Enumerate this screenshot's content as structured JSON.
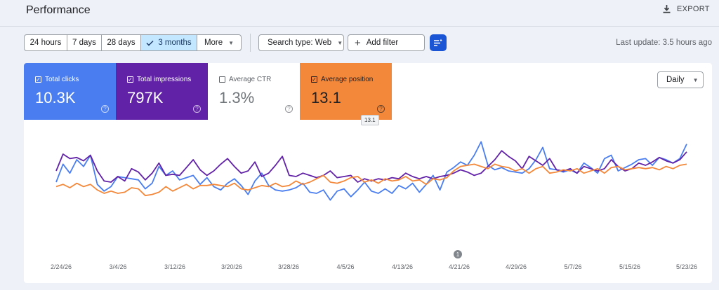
{
  "header": {
    "title": "Performance",
    "export_label": "EXPORT"
  },
  "filters": {
    "date_ranges": [
      {
        "label": "24 hours",
        "active": false
      },
      {
        "label": "7 days",
        "active": false
      },
      {
        "label": "28 days",
        "active": false
      },
      {
        "label": "3 months",
        "active": true
      },
      {
        "label": "More",
        "active": false
      }
    ],
    "search_type_label": "Search type: Web",
    "add_filter_label": "Add filter",
    "last_update": "Last update: 3.5 hours ago"
  },
  "metrics": [
    {
      "label": "Total clicks",
      "value": "10.3K",
      "checked": true
    },
    {
      "label": "Total impressions",
      "value": "797K",
      "checked": true
    },
    {
      "label": "Average CTR",
      "value": "1.3%",
      "checked": false
    },
    {
      "label": "Average position",
      "value": "13.1",
      "checked": true
    }
  ],
  "tooltip": "13.1",
  "granularity": "Daily",
  "annotation_marker": "1",
  "colors": {
    "clicks": "#4a7ef0",
    "impressions": "#6222a8",
    "position": "#f4883a",
    "active_filter": "#c2e7ff",
    "accent": "#1a55d6"
  },
  "chart_data": {
    "type": "line",
    "x_ticks": [
      "2/24/26",
      "3/4/26",
      "3/12/26",
      "3/20/26",
      "3/28/26",
      "4/5/26",
      "4/13/26",
      "4/21/26",
      "4/29/26",
      "5/7/26",
      "5/15/26",
      "5/23/26"
    ],
    "y_axis_shown": false,
    "series": [
      {
        "metric": "clicks",
        "color": "#4a7ef0",
        "values": [
          0.5,
          0.66,
          0.58,
          0.7,
          0.64,
          0.74,
          0.48,
          0.42,
          0.46,
          0.55,
          0.54,
          0.53,
          0.52,
          0.44,
          0.49,
          0.64,
          0.56,
          0.6,
          0.52,
          0.54,
          0.56,
          0.48,
          0.54,
          0.46,
          0.43,
          0.49,
          0.53,
          0.47,
          0.39,
          0.51,
          0.58,
          0.47,
          0.43,
          0.42,
          0.43,
          0.45,
          0.49,
          0.41,
          0.4,
          0.43,
          0.34,
          0.42,
          0.44,
          0.37,
          0.43,
          0.5,
          0.42,
          0.4,
          0.44,
          0.4,
          0.47,
          0.44,
          0.49,
          0.41,
          0.48,
          0.56,
          0.43,
          0.59,
          0.63,
          0.68,
          0.65,
          0.74,
          0.86,
          0.65,
          0.61,
          0.63,
          0.6,
          0.59,
          0.58,
          0.62,
          0.7,
          0.81,
          0.62,
          0.61,
          0.59,
          0.61,
          0.58,
          0.67,
          0.63,
          0.58,
          0.71,
          0.74,
          0.6,
          0.63,
          0.66,
          0.7,
          0.71,
          0.65,
          0.72,
          0.7,
          0.67,
          0.71,
          0.84
        ]
      },
      {
        "metric": "impressions",
        "color": "#6222a8",
        "values": [
          0.6,
          0.75,
          0.71,
          0.72,
          0.69,
          0.74,
          0.6,
          0.51,
          0.5,
          0.55,
          0.51,
          0.62,
          0.59,
          0.52,
          0.58,
          0.67,
          0.56,
          0.57,
          0.56,
          0.63,
          0.7,
          0.61,
          0.56,
          0.6,
          0.66,
          0.71,
          0.64,
          0.58,
          0.6,
          0.68,
          0.55,
          0.58,
          0.65,
          0.73,
          0.56,
          0.55,
          0.58,
          0.56,
          0.54,
          0.56,
          0.6,
          0.54,
          0.55,
          0.56,
          0.5,
          0.53,
          0.51,
          0.53,
          0.52,
          0.54,
          0.53,
          0.58,
          0.55,
          0.53,
          0.55,
          0.53,
          0.55,
          0.56,
          0.58,
          0.61,
          0.59,
          0.56,
          0.58,
          0.64,
          0.7,
          0.78,
          0.73,
          0.69,
          0.62,
          0.73,
          0.69,
          0.65,
          0.71,
          0.61,
          0.6,
          0.62,
          0.58,
          0.64,
          0.62,
          0.6,
          0.62,
          0.7,
          0.64,
          0.6,
          0.62,
          0.67,
          0.65,
          0.68,
          0.72,
          0.69,
          0.67,
          0.7,
          0.77
        ]
      },
      {
        "metric": "position",
        "color": "#f4883a",
        "values": [
          0.46,
          0.48,
          0.45,
          0.49,
          0.46,
          0.48,
          0.43,
          0.4,
          0.42,
          0.4,
          0.41,
          0.45,
          0.44,
          0.38,
          0.39,
          0.41,
          0.46,
          0.42,
          0.45,
          0.48,
          0.44,
          0.47,
          0.47,
          0.48,
          0.47,
          0.46,
          0.49,
          0.44,
          0.43,
          0.45,
          0.47,
          0.46,
          0.49,
          0.46,
          0.47,
          0.51,
          0.48,
          0.5,
          0.53,
          0.56,
          0.5,
          0.49,
          0.51,
          0.54,
          0.55,
          0.5,
          0.52,
          0.49,
          0.53,
          0.51,
          0.52,
          0.55,
          0.51,
          0.52,
          0.48,
          0.53,
          0.52,
          0.54,
          0.6,
          0.64,
          0.65,
          0.66,
          0.64,
          0.62,
          0.66,
          0.64,
          0.63,
          0.6,
          0.62,
          0.58,
          0.62,
          0.64,
          0.58,
          0.59,
          0.61,
          0.6,
          0.62,
          0.58,
          0.6,
          0.62,
          0.58,
          0.63,
          0.64,
          0.61,
          0.62,
          0.63,
          0.62,
          0.63,
          0.61,
          0.64,
          0.62,
          0.65,
          0.66
        ]
      }
    ]
  }
}
